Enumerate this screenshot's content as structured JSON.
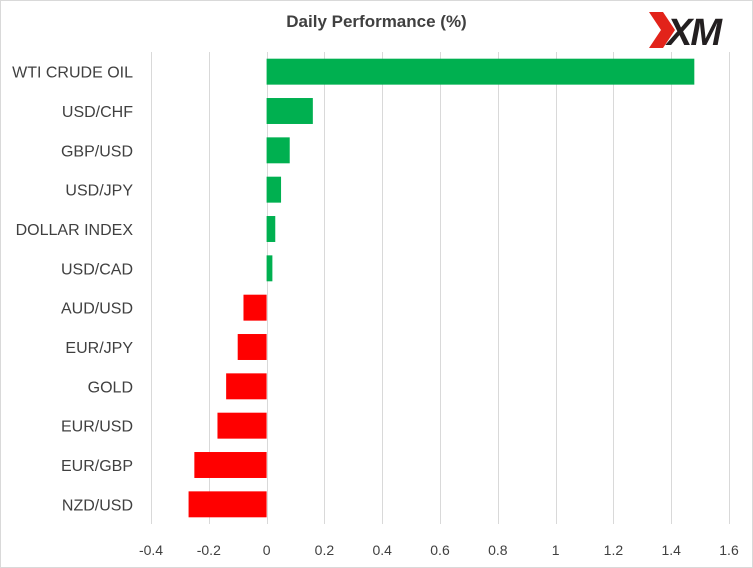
{
  "chart_data": {
    "type": "bar",
    "orientation": "horizontal",
    "title": "Daily Performance (%)",
    "categories": [
      "WTI CRUDE OIL",
      "USD/CHF",
      "GBP/USD",
      "USD/JPY",
      "DOLLAR INDEX",
      "USD/CAD",
      "AUD/USD",
      "EUR/JPY",
      "GOLD",
      "EUR/USD",
      "EUR/GBP",
      "NZD/USD"
    ],
    "values": [
      1.48,
      0.16,
      0.08,
      0.05,
      0.03,
      0.02,
      -0.08,
      -0.1,
      -0.14,
      -0.17,
      -0.25,
      -0.27
    ],
    "xlim": [
      -0.4,
      1.6
    ],
    "xticks": [
      -0.4,
      -0.2,
      0,
      0.2,
      0.4,
      0.6,
      0.8,
      1,
      1.2,
      1.4,
      1.6
    ],
    "xlabel": "",
    "ylabel": "",
    "grid": true,
    "legend": false,
    "colors": {
      "positive": "#00b050",
      "negative": "#ff0000",
      "grid": "#d9d9d9",
      "text": "#404040"
    }
  },
  "logo": {
    "text": "XM",
    "colors": {
      "mark": "#e2231a",
      "text": "#231f20"
    }
  }
}
